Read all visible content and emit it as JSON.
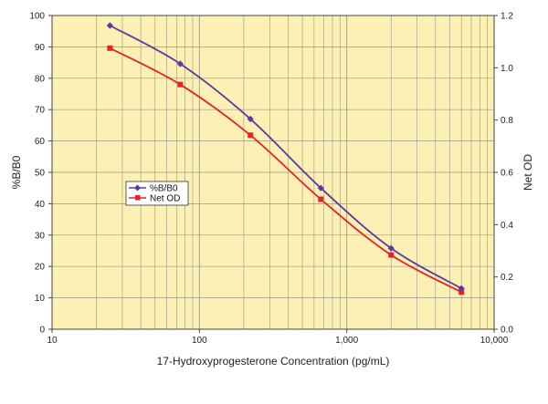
{
  "chart_data": {
    "type": "line",
    "title": "",
    "xlabel": "17-Hydroxyprogesterone Concentration (pg/mL)",
    "ylabel": "%B/B0",
    "y2label": "Net OD",
    "x_scale": "log",
    "xlim": [
      10,
      10000
    ],
    "ylim": [
      0,
      100
    ],
    "y2lim": [
      0,
      1.2
    ],
    "x_ticks": [
      10,
      100,
      1000,
      10000
    ],
    "x_tick_labels": [
      "10",
      "100",
      "1,000",
      "10,000"
    ],
    "y_ticks": [
      0,
      10,
      20,
      30,
      40,
      50,
      60,
      70,
      80,
      90,
      100
    ],
    "y_tick_labels": [
      "0",
      "10",
      "20",
      "30",
      "40",
      "50",
      "60",
      "70",
      "80",
      "90",
      "100"
    ],
    "y2_ticks": [
      0,
      0.2,
      0.4,
      0.6,
      0.8,
      1.0,
      1.2
    ],
    "y2_tick_labels": [
      "0.0",
      "0.2",
      "0.4",
      "0.6",
      "0.8",
      "1.0",
      "1.2"
    ],
    "grid": true,
    "legend_position": "center-left",
    "plot_background": "#fcf0b4",
    "series": [
      {
        "name": "%B/B0",
        "axis": "left",
        "color": "#5b3a9e",
        "marker": "diamond",
        "x": [
          24.7,
          74.1,
          222,
          667,
          2000,
          6000
        ],
        "values": [
          96.8,
          84.6,
          67.0,
          45.0,
          25.8,
          13.0
        ]
      },
      {
        "name": "Net OD",
        "axis": "right",
        "color": "#e0242a",
        "marker": "square",
        "x": [
          24.7,
          74.1,
          222,
          667,
          2000,
          6000
        ],
        "values": [
          1.075,
          0.936,
          0.742,
          0.497,
          0.284,
          0.142
        ]
      }
    ]
  }
}
